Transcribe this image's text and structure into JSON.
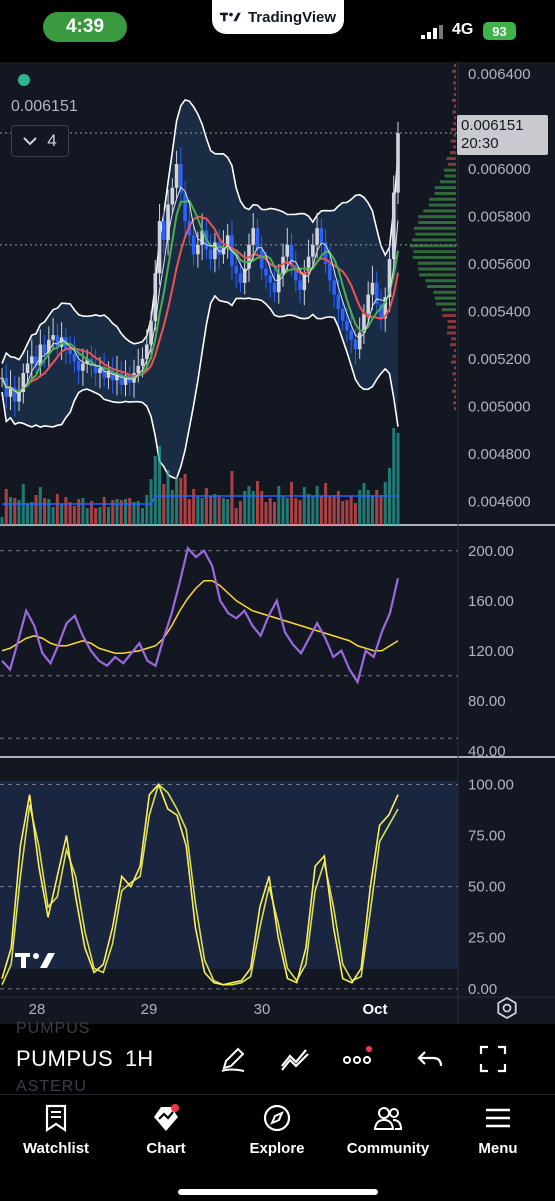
{
  "status_bar": {
    "time": "4:39",
    "app_pill": "TradingView",
    "network": "4G",
    "battery": "93"
  },
  "chart": {
    "last_price": "0.006151",
    "indicator_count": "4",
    "price_tag": {
      "price": "0.006151",
      "countdown": "20:30"
    },
    "price_axis": [
      "0.006400",
      "0.006200",
      "0.006000",
      "0.005800",
      "0.005600",
      "0.005400",
      "0.005200",
      "0.005000",
      "0.004800",
      "0.004600"
    ],
    "cci_axis": [
      "200.00",
      "160.00",
      "120.00",
      "80.00",
      "40.00"
    ],
    "stoch_axis": [
      "100.00",
      "75.00",
      "50.00",
      "25.00",
      "0.00"
    ],
    "time_axis": [
      "28",
      "29",
      "30",
      "Oct"
    ]
  },
  "chart_data": [
    {
      "type": "candlestick",
      "title": "",
      "x": [
        "28",
        "29",
        "30",
        "Oct"
      ],
      "close_series": [
        0.00512,
        0.00504,
        0.00508,
        0.00502,
        0.00506,
        0.00514,
        0.00518,
        0.00521,
        0.00517,
        0.00526,
        0.00522,
        0.00528,
        0.0053,
        0.00525,
        0.00529,
        0.00524,
        0.00522,
        0.00519,
        0.00515,
        0.00518,
        0.0052,
        0.00517,
        0.00514,
        0.00516,
        0.00512,
        0.00515,
        0.00511,
        0.00514,
        0.00509,
        0.00513,
        0.0051,
        0.00514,
        0.00517,
        0.0052,
        0.00526,
        0.00536,
        0.00556,
        0.00578,
        0.0057,
        0.00585,
        0.00592,
        0.00602,
        0.0059,
        0.00578,
        0.00572,
        0.00564,
        0.00568,
        0.00574,
        0.00566,
        0.00562,
        0.00569,
        0.00564,
        0.00567,
        0.00572,
        0.00559,
        0.00556,
        0.00552,
        0.00558,
        0.00568,
        0.00575,
        0.00566,
        0.00558,
        0.00555,
        0.00552,
        0.00548,
        0.00556,
        0.00563,
        0.00568,
        0.00559,
        0.00553,
        0.00549,
        0.00556,
        0.00563,
        0.00568,
        0.00575,
        0.00569,
        0.0056,
        0.00553,
        0.00547,
        0.00541,
        0.00536,
        0.00532,
        0.00528,
        0.00524,
        0.00531,
        0.00539,
        0.00547,
        0.00552,
        0.00543,
        0.00537,
        0.00546,
        0.00562,
        0.0059,
        0.00615
      ],
      "bollinger": {
        "upper_max": 0.00623,
        "lower_min": 0.00467
      },
      "ylim": [
        0.0045,
        0.00645
      ]
    },
    {
      "type": "line",
      "series": [
        {
          "values": [
            112,
            105,
            128,
            152,
            140,
            118,
            110,
            125,
            142,
            148,
            132,
            120,
            112,
            108,
            115,
            110,
            118,
            126,
            112,
            108,
            130,
            150,
            175,
            202,
            195,
            200,
            188,
            160,
            150,
            146,
            152,
            140,
            132,
            148,
            160,
            135,
            125,
            118,
            130,
            142,
            130,
            115,
            120,
            105,
            95,
            120,
            115,
            135,
            150,
            178
          ]
        },
        {
          "values": [
            120,
            122,
            126,
            130,
            132,
            130,
            126,
            124,
            124,
            126,
            128,
            126,
            122,
            120,
            118,
            118,
            119,
            120,
            122,
            124,
            130,
            140,
            152,
            162,
            170,
            176,
            176,
            172,
            166,
            160,
            156,
            152,
            150,
            148,
            146,
            144,
            142,
            140,
            138,
            136,
            134,
            132,
            130,
            128,
            124,
            122,
            120,
            120,
            124,
            128
          ]
        }
      ],
      "ylim": [
        35,
        215
      ]
    },
    {
      "type": "line",
      "series": [
        {
          "values": [
            5,
            20,
            70,
            95,
            60,
            35,
            55,
            75,
            45,
            20,
            8,
            12,
            30,
            55,
            50,
            60,
            95,
            100,
            88,
            85,
            70,
            30,
            8,
            3,
            2,
            3,
            4,
            10,
            40,
            55,
            25,
            5,
            3,
            20,
            60,
            65,
            30,
            5,
            3,
            10,
            50,
            80,
            85,
            95
          ]
        },
        {
          "values": [
            2,
            12,
            55,
            90,
            70,
            40,
            45,
            68,
            55,
            28,
            10,
            8,
            22,
            48,
            52,
            55,
            85,
            100,
            96,
            88,
            78,
            42,
            14,
            4,
            2,
            2,
            3,
            6,
            30,
            50,
            32,
            10,
            4,
            12,
            48,
            62,
            40,
            12,
            4,
            6,
            38,
            72,
            80,
            88
          ]
        }
      ],
      "ylim": [
        -4,
        110
      ]
    }
  ],
  "toolbar": {
    "symbol": "PUMPUS",
    "symbol_prev": "PUMPUS",
    "symbol_next": "ASTERU",
    "interval": "1H"
  },
  "nav": [
    {
      "label": "Watchlist",
      "icon": "bookmark-icon"
    },
    {
      "label": "Chart",
      "icon": "chart-icon"
    },
    {
      "label": "Explore",
      "icon": "compass-icon"
    },
    {
      "label": "Community",
      "icon": "people-icon"
    },
    {
      "label": "Menu",
      "icon": "hamburger-icon"
    }
  ]
}
